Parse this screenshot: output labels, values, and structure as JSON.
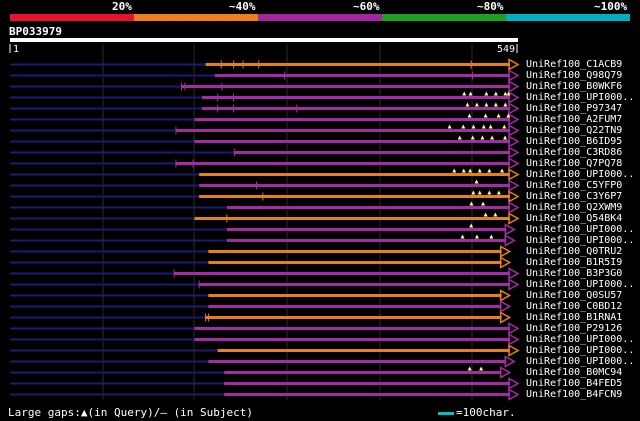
{
  "identity_scale": {
    "labels": [
      "20%",
      "~40%",
      "~60%",
      "~80%",
      "~100%"
    ],
    "colors": [
      "#e8122f",
      "#ef7d1d",
      "#a524a0",
      "#20a020",
      "#00b0c0"
    ]
  },
  "query": {
    "name": "BP033979",
    "start_label": "1",
    "end_label": "549"
  },
  "legend": {
    "gaps_text": "Large gaps:▲(in Query)/– (in Subject)",
    "scale_text": "=100char."
  },
  "hits": [
    {
      "name": "UniRef100_C1ACB9",
      "color": "orange",
      "start": 212,
      "end": 549,
      "mark_pts": [],
      "ticks": [
        0.05,
        0.09,
        0.12,
        0.17,
        0.85
      ]
    },
    {
      "name": "UniRef100_Q98Q79",
      "color": "purple",
      "start": 222,
      "end": 549,
      "mark_pts": [],
      "ticks": [
        0.23,
        0.85
      ]
    },
    {
      "name": "UniRef100_B0WKF6",
      "color": "purple",
      "start": 186,
      "end": 549,
      "mark_pts": [],
      "ticks": [
        0.0,
        0.01,
        0.12
      ]
    },
    {
      "name": "UniRef100_UPI000..",
      "color": "purple",
      "start": 208,
      "end": 549,
      "mark_pts": [
        0.83,
        0.85,
        0.9,
        0.93,
        0.96,
        0.97
      ],
      "ticks": [
        0.05,
        0.1
      ]
    },
    {
      "name": "UniRef100_P97347",
      "color": "purple",
      "start": 208,
      "end": 549,
      "mark_pts": [
        0.84,
        0.87,
        0.9,
        0.93,
        0.96
      ],
      "ticks": [
        0.05,
        0.1,
        0.3
      ]
    },
    {
      "name": "UniRef100_A2FUM7",
      "color": "purple",
      "start": 200,
      "end": 549,
      "mark_pts": [
        0.85,
        0.9,
        0.94,
        0.97
      ],
      "ticks": []
    },
    {
      "name": "UniRef100_Q22TN9",
      "color": "purple",
      "start": 180,
      "end": 549,
      "mark_pts": [
        0.8,
        0.84,
        0.87,
        0.9,
        0.92,
        0.96
      ],
      "ticks": [
        0.0
      ]
    },
    {
      "name": "UniRef100_B6ID95",
      "color": "purple",
      "start": 200,
      "end": 549,
      "mark_pts": [
        0.82,
        0.86,
        0.89,
        0.92,
        0.96
      ],
      "ticks": []
    },
    {
      "name": "UniRef100_C3RD86",
      "color": "purple",
      "start": 243,
      "end": 549,
      "mark_pts": [],
      "ticks": [
        0.0
      ]
    },
    {
      "name": "UniRef100_Q7PQ78",
      "color": "purple",
      "start": 180,
      "end": 549,
      "mark_pts": [],
      "ticks": [
        0.0,
        0.05
      ]
    },
    {
      "name": "UniRef100_UPI000..",
      "color": "orange",
      "start": 205,
      "end": 549,
      "mark_pts": [
        0.8,
        0.83,
        0.85,
        0.88,
        0.91,
        0.95
      ],
      "ticks": []
    },
    {
      "name": "UniRef100_C5YFP0",
      "color": "purple",
      "start": 205,
      "end": 549,
      "mark_pts": [
        0.87
      ],
      "ticks": [
        0.18
      ]
    },
    {
      "name": "UniRef100_C3Y6P7",
      "color": "orange",
      "start": 205,
      "end": 549,
      "mark_pts": [
        0.86,
        0.88,
        0.91,
        0.94
      ],
      "ticks": [
        0.2
      ]
    },
    {
      "name": "UniRef100_Q2XWM9",
      "color": "purple",
      "start": 235,
      "end": 549,
      "mark_pts": [
        0.84,
        0.88
      ],
      "ticks": []
    },
    {
      "name": "UniRef100_Q54BK4",
      "color": "orange",
      "start": 200,
      "end": 549,
      "mark_pts": [
        0.9,
        0.93
      ],
      "ticks": [
        0.1
      ]
    },
    {
      "name": "UniRef100_UPI000..",
      "color": "purple",
      "start": 235,
      "end": 545,
      "mark_pts": [
        0.85
      ],
      "ticks": []
    },
    {
      "name": "UniRef100_UPI000..",
      "color": "purple",
      "start": 235,
      "end": 545,
      "mark_pts": [
        0.82,
        0.87,
        0.92
      ],
      "ticks": []
    },
    {
      "name": "UniRef100_Q0TRU2",
      "color": "orange",
      "start": 215,
      "end": 540,
      "mark_pts": [],
      "ticks": []
    },
    {
      "name": "UniRef100_B1R5I9",
      "color": "orange",
      "start": 215,
      "end": 540,
      "mark_pts": [],
      "ticks": []
    },
    {
      "name": "UniRef100_B3P3G0",
      "color": "purple",
      "start": 178,
      "end": 549,
      "mark_pts": [],
      "ticks": [
        0.0
      ]
    },
    {
      "name": "UniRef100_UPI000..",
      "color": "purple",
      "start": 205,
      "end": 549,
      "mark_pts": [],
      "ticks": [
        0.0
      ]
    },
    {
      "name": "UniRef100_Q0SU57",
      "color": "orange",
      "start": 215,
      "end": 540,
      "mark_pts": [],
      "ticks": []
    },
    {
      "name": "UniRef100_C0BD12",
      "color": "purple",
      "start": 215,
      "end": 540,
      "mark_pts": [],
      "ticks": []
    },
    {
      "name": "UniRef100_B1RNA1",
      "color": "orange",
      "start": 212,
      "end": 540,
      "mark_pts": [],
      "ticks": [
        0.0,
        0.01
      ]
    },
    {
      "name": "UniRef100_P29126",
      "color": "purple",
      "start": 200,
      "end": 549,
      "mark_pts": [],
      "ticks": []
    },
    {
      "name": "UniRef100_UPI000..",
      "color": "purple",
      "start": 200,
      "end": 549,
      "mark_pts": [],
      "ticks": []
    },
    {
      "name": "UniRef100_UPI000..",
      "color": "orange",
      "start": 225,
      "end": 549,
      "mark_pts": [],
      "ticks": []
    },
    {
      "name": "UniRef100_UPI000..",
      "color": "purple",
      "start": 215,
      "end": 545,
      "mark_pts": [],
      "ticks": []
    },
    {
      "name": "UniRef100_B0MC94",
      "color": "purple",
      "start": 232,
      "end": 540,
      "mark_pts": [
        0.86,
        0.9
      ],
      "ticks": []
    },
    {
      "name": "UniRef100_B4FED5",
      "color": "purple",
      "start": 232,
      "end": 549,
      "mark_pts": [],
      "ticks": []
    },
    {
      "name": "UniRef100_B4FCN9",
      "color": "purple",
      "start": 232,
      "end": 549,
      "mark_pts": [],
      "ticks": []
    }
  ]
}
